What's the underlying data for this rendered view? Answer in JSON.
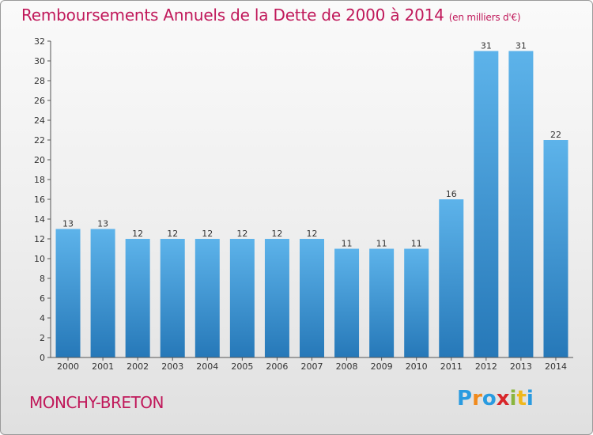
{
  "chart_data": {
    "type": "bar",
    "title": "Remboursements Annuels de la Dette de 2000 à 2014",
    "subtitle": "(en milliers d'€)",
    "categories": [
      "2000",
      "2001",
      "2002",
      "2003",
      "2004",
      "2005",
      "2006",
      "2007",
      "2008",
      "2009",
      "2010",
      "2011",
      "2012",
      "2013",
      "2014"
    ],
    "values": [
      13,
      13,
      12,
      12,
      12,
      12,
      12,
      12,
      11,
      11,
      11,
      16,
      31,
      31,
      22
    ],
    "ylim": [
      0,
      32
    ],
    "yticks": [
      0,
      2,
      4,
      6,
      8,
      10,
      12,
      14,
      16,
      18,
      20,
      22,
      24,
      26,
      28,
      30,
      32
    ],
    "grid": false,
    "bar_color": "#4ea6e2"
  },
  "commune": "MONCHY-BRETON",
  "logo": {
    "text": "Proxiti",
    "letters": [
      {
        "ch": "P",
        "color": "#2a9be0"
      },
      {
        "ch": "r",
        "color": "#f08a1c"
      },
      {
        "ch": "o",
        "color": "#2a9be0"
      },
      {
        "ch": "x",
        "color": "#d8262a"
      },
      {
        "ch": "i",
        "color": "#8ab53e"
      },
      {
        "ch": "t",
        "color": "#f0b81c"
      },
      {
        "ch": "i",
        "color": "#2a9be0"
      }
    ]
  },
  "colors": {
    "title": "#c0185a",
    "bar_top": "#5db3ea",
    "bar_bottom": "#2678b8"
  }
}
